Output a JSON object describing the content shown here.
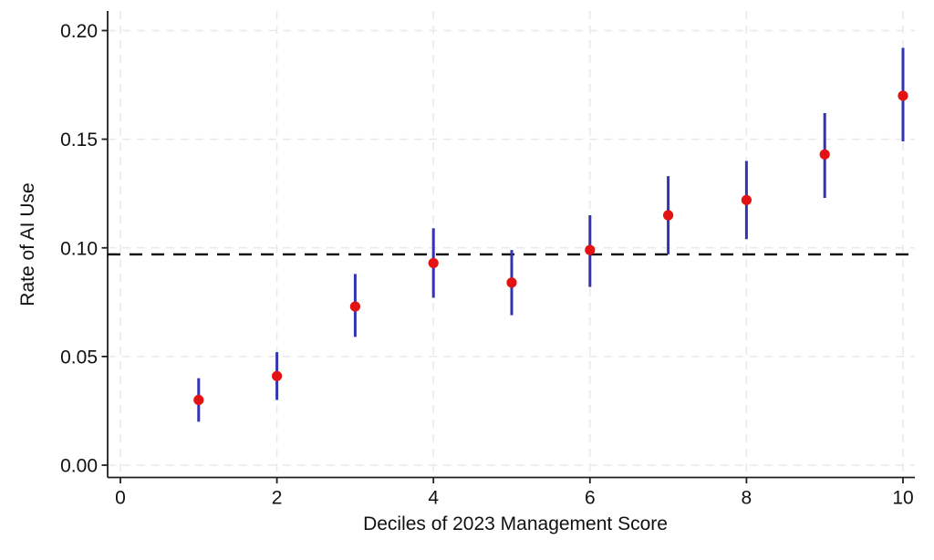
{
  "chart_data": {
    "type": "scatter",
    "title": "",
    "xlabel": "Deciles of 2023 Management Score",
    "ylabel": "Rate of AI Use",
    "x": [
      1,
      2,
      3,
      4,
      5,
      6,
      7,
      8,
      9,
      10
    ],
    "series": [
      {
        "name": "Rate of AI Use (point estimate with 95% CI)",
        "values": [
          0.03,
          0.041,
          0.073,
          0.093,
          0.084,
          0.099,
          0.115,
          0.122,
          0.143,
          0.17
        ],
        "ci_low": [
          0.02,
          0.03,
          0.059,
          0.077,
          0.069,
          0.082,
          0.097,
          0.104,
          0.123,
          0.149
        ],
        "ci_high": [
          0.04,
          0.052,
          0.088,
          0.109,
          0.099,
          0.115,
          0.133,
          0.14,
          0.162,
          0.192
        ]
      }
    ],
    "reference_line_y": 0.097,
    "xlim": [
      0,
      10
    ],
    "ylim": [
      0,
      0.2
    ],
    "x_ticks": [
      0,
      2,
      4,
      6,
      8,
      10
    ],
    "x_tick_labels": [
      "0",
      "2",
      "4",
      "6",
      "8",
      "10"
    ],
    "y_ticks": [
      0,
      0.05,
      0.1,
      0.15,
      0.2
    ],
    "y_tick_labels": [
      "0.00",
      "0.05",
      "0.10",
      "0.15",
      "0.20"
    ],
    "grid": true,
    "grid_style": "dashed",
    "legend": false,
    "colors": {
      "point": "#e31313",
      "ci_bar": "#3434b0",
      "reference_line": "#000000",
      "grid": "#e9e9e9",
      "axis": "#1f1f1f",
      "text": "#111111",
      "background": "#ffffff"
    }
  }
}
